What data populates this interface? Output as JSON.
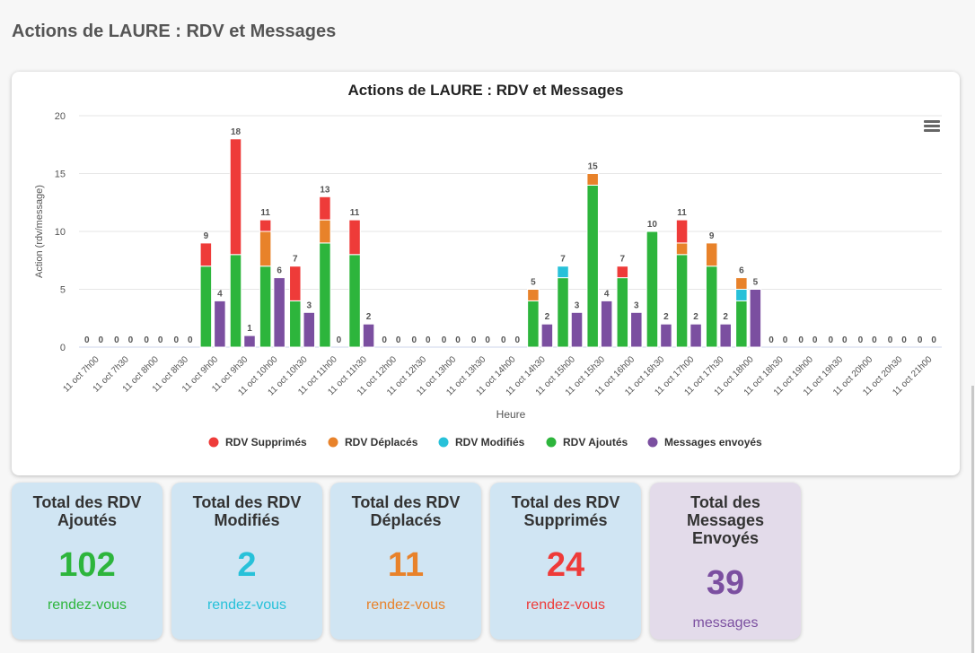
{
  "page": {
    "title": "Actions de LAURE : RDV et Messages"
  },
  "chart_data": {
    "type": "bar",
    "stacked": true,
    "title": "Actions de LAURE : RDV et Messages",
    "xlabel": "Heure",
    "ylabel": "Action (rdv/message)",
    "ylim": [
      0,
      20
    ],
    "yticks": [
      "0",
      "5",
      "10",
      "15",
      "20"
    ],
    "grid": true,
    "legend": "bottom",
    "categories": [
      "11 oct 7h00",
      "11 oct 7h30",
      "11 oct 8h00",
      "11 oct 8h30",
      "11 oct 9h00",
      "11 oct 9h30",
      "11 oct 10h00",
      "11 oct 10h30",
      "11 oct 11h00",
      "11 oct 11h30",
      "11 oct 12h00",
      "11 oct 12h30",
      "11 oct 13h00",
      "11 oct 13h30",
      "11 oct 14h00",
      "11 oct 14h30",
      "11 oct 15h00",
      "11 oct 15h30",
      "11 oct 16h00",
      "11 oct 16h30",
      "11 oct 17h00",
      "11 oct 17h30",
      "11 oct 18h00",
      "11 oct 18h30",
      "11 oct 19h00",
      "11 oct 19h30",
      "11 oct 20h00",
      "11 oct 20h30",
      "11 oct 21h00"
    ],
    "stack_rdv": {
      "ajoutes": [
        0,
        0,
        0,
        0,
        7,
        8,
        7,
        4,
        9,
        8,
        0,
        0,
        0,
        0,
        0,
        4,
        6,
        14,
        6,
        10,
        8,
        7,
        4,
        0,
        0,
        0,
        0,
        0,
        0
      ],
      "modifies": [
        0,
        0,
        0,
        0,
        0,
        0,
        0,
        0,
        0,
        0,
        0,
        0,
        0,
        0,
        0,
        0,
        1,
        0,
        0,
        0,
        0,
        0,
        1,
        0,
        0,
        0,
        0,
        0,
        0
      ],
      "deplaces": [
        0,
        0,
        0,
        0,
        0,
        0,
        3,
        0,
        2,
        0,
        0,
        0,
        0,
        0,
        0,
        1,
        0,
        1,
        0,
        0,
        1,
        2,
        1,
        0,
        0,
        0,
        0,
        0,
        0
      ],
      "supprimes": [
        0,
        0,
        0,
        0,
        2,
        10,
        1,
        3,
        2,
        3,
        0,
        0,
        0,
        0,
        0,
        0,
        0,
        0,
        1,
        0,
        2,
        0,
        0,
        0,
        0,
        0,
        0,
        0,
        0
      ]
    },
    "messages": [
      0,
      0,
      0,
      0,
      4,
      1,
      6,
      3,
      0,
      2,
      0,
      0,
      0,
      0,
      0,
      2,
      3,
      4,
      3,
      2,
      2,
      2,
      5,
      0,
      0,
      0,
      0,
      0,
      0
    ],
    "rdv_totals": [
      0,
      0,
      0,
      0,
      9,
      18,
      11,
      7,
      13,
      11,
      0,
      0,
      0,
      0,
      0,
      5,
      7,
      15,
      7,
      10,
      11,
      9,
      6,
      0,
      0,
      0,
      0,
      0,
      0
    ],
    "series": [
      {
        "key": "supprimes",
        "name": "RDV Supprimés",
        "color": "#ee3b39"
      },
      {
        "key": "deplaces",
        "name": "RDV Déplacés",
        "color": "#e8822a"
      },
      {
        "key": "modifies",
        "name": "RDV Modifiés",
        "color": "#27c1d9"
      },
      {
        "key": "ajoutes",
        "name": "RDV Ajoutés",
        "color": "#2db53c"
      },
      {
        "key": "messages",
        "name": "Messages envoyés",
        "color": "#7b4fa0"
      }
    ]
  },
  "stats": [
    {
      "title": "Total des RDV Ajoutés",
      "value": "102",
      "unit": "rendez-vous",
      "color": "#2db53c"
    },
    {
      "title": "Total des RDV Modifiés",
      "value": "2",
      "unit": "rendez-vous",
      "color": "#27c1d9"
    },
    {
      "title": "Total des RDV Déplacés",
      "value": "11",
      "unit": "rendez-vous",
      "color": "#e8822a"
    },
    {
      "title": "Total des RDV Supprimés",
      "value": "24",
      "unit": "rendez-vous",
      "color": "#ee3b39"
    },
    {
      "title": "Total des Messages Envoyés",
      "value": "39",
      "unit": "messages",
      "color": "#7b4fa0"
    }
  ]
}
